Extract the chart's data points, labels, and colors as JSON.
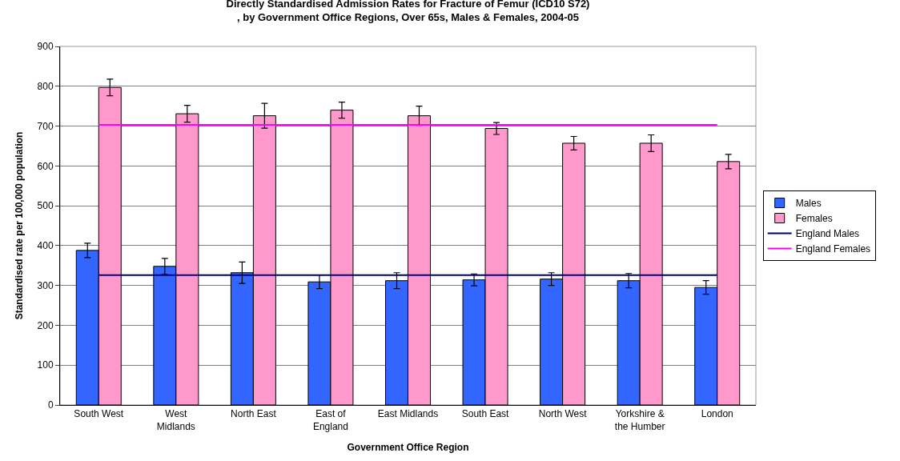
{
  "chart_data": {
    "type": "bar",
    "title": "Directly Standardised Admission Rates for Fracture of Femur (ICD10 S72)\n, by Government Office Regions, Over 65s, Males & Females, 2004-05",
    "xlabel": "Government Office Region",
    "ylabel": "Standardised rate per 100,000 population",
    "categories": [
      "South West",
      "West\nMidlands",
      "North East",
      "East of\nEngland",
      "East Midlands",
      "South East",
      "North West",
      "Yorkshire &\nthe Humber",
      "London"
    ],
    "series": [
      {
        "name": "Males",
        "color": "#3366ff",
        "values": [
          388,
          348,
          332,
          309,
          312,
          314,
          316,
          312,
          295
        ],
        "errors": [
          18,
          20,
          27,
          17,
          20,
          15,
          16,
          18,
          17
        ]
      },
      {
        "name": "Females",
        "color": "#ff99cc",
        "values": [
          797,
          731,
          726,
          740,
          726,
          694,
          657,
          657,
          611
        ],
        "errors": [
          21,
          21,
          31,
          20,
          24,
          15,
          17,
          21,
          18
        ]
      }
    ],
    "ref_lines": [
      {
        "axis": "y",
        "value": 326,
        "label": "England Males",
        "color": "#000080",
        "line_style": "solid"
      },
      {
        "axis": "y",
        "value": 703,
        "label": "England Females",
        "color": "#ff00ff",
        "line_style": "solid"
      }
    ],
    "ylim": [
      0,
      900
    ],
    "yticks": [
      0,
      100,
      200,
      300,
      400,
      500,
      600,
      700,
      800,
      900
    ],
    "grid": "y",
    "legend": "right"
  }
}
